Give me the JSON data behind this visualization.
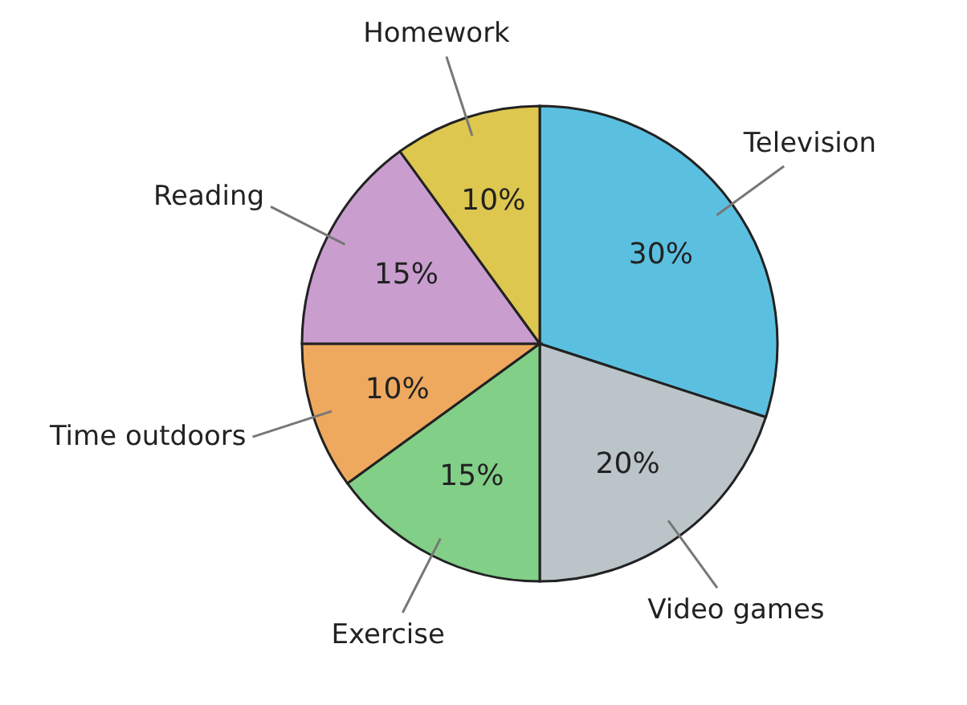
{
  "chart_data": {
    "type": "pie",
    "categories": [
      "Television",
      "Video games",
      "Exercise",
      "Time outdoors",
      "Reading",
      "Homework"
    ],
    "values": [
      30,
      20,
      15,
      10,
      15,
      10
    ],
    "value_labels": [
      "30%",
      "20%",
      "15%",
      "10%",
      "15%",
      "10%"
    ],
    "colors": [
      "#5bc0e0",
      "#bbc4c8",
      "#82cf88",
      "#eea95f",
      "#c99ecf",
      "#dec74f"
    ]
  }
}
